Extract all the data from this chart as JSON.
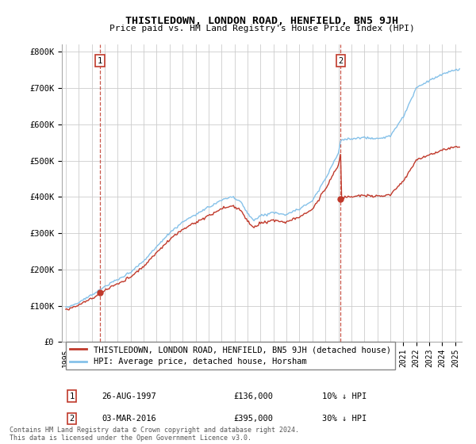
{
  "title": "THISTLEDOWN, LONDON ROAD, HENFIELD, BN5 9JH",
  "subtitle": "Price paid vs. HM Land Registry's House Price Index (HPI)",
  "sale1_year": 1997.64,
  "sale1_price": 136000,
  "sale2_year": 2016.17,
  "sale2_price": 395000,
  "hpi_line_color": "#85c1e9",
  "price_line_color": "#c0392b",
  "dashed_line_color": "#c0392b",
  "sale_marker_color": "#c0392b",
  "background_color": "#ffffff",
  "grid_color": "#cccccc",
  "legend_entry1": "THISTLEDOWN, LONDON ROAD, HENFIELD, BN5 9JH (detached house)",
  "legend_entry2": "HPI: Average price, detached house, Horsham",
  "footer": "Contains HM Land Registry data © Crown copyright and database right 2024.\nThis data is licensed under the Open Government Licence v3.0.",
  "ylim": [
    0,
    820000
  ],
  "yticks": [
    0,
    100000,
    200000,
    300000,
    400000,
    500000,
    600000,
    700000,
    800000
  ],
  "ytick_labels": [
    "£0",
    "£100K",
    "£200K",
    "£300K",
    "£400K",
    "£500K",
    "£600K",
    "£700K",
    "£800K"
  ],
  "xtick_years": [
    1995,
    1996,
    1997,
    1998,
    1999,
    2000,
    2001,
    2002,
    2003,
    2004,
    2005,
    2006,
    2007,
    2008,
    2009,
    2010,
    2011,
    2012,
    2013,
    2014,
    2015,
    2016,
    2017,
    2018,
    2019,
    2020,
    2021,
    2022,
    2023,
    2024,
    2025
  ],
  "table_row1": [
    "1",
    "26-AUG-1997",
    "£136,000",
    "10% ↓ HPI"
  ],
  "table_row2": [
    "2",
    "03-MAR-2016",
    "£395,000",
    "30% ↓ HPI"
  ]
}
